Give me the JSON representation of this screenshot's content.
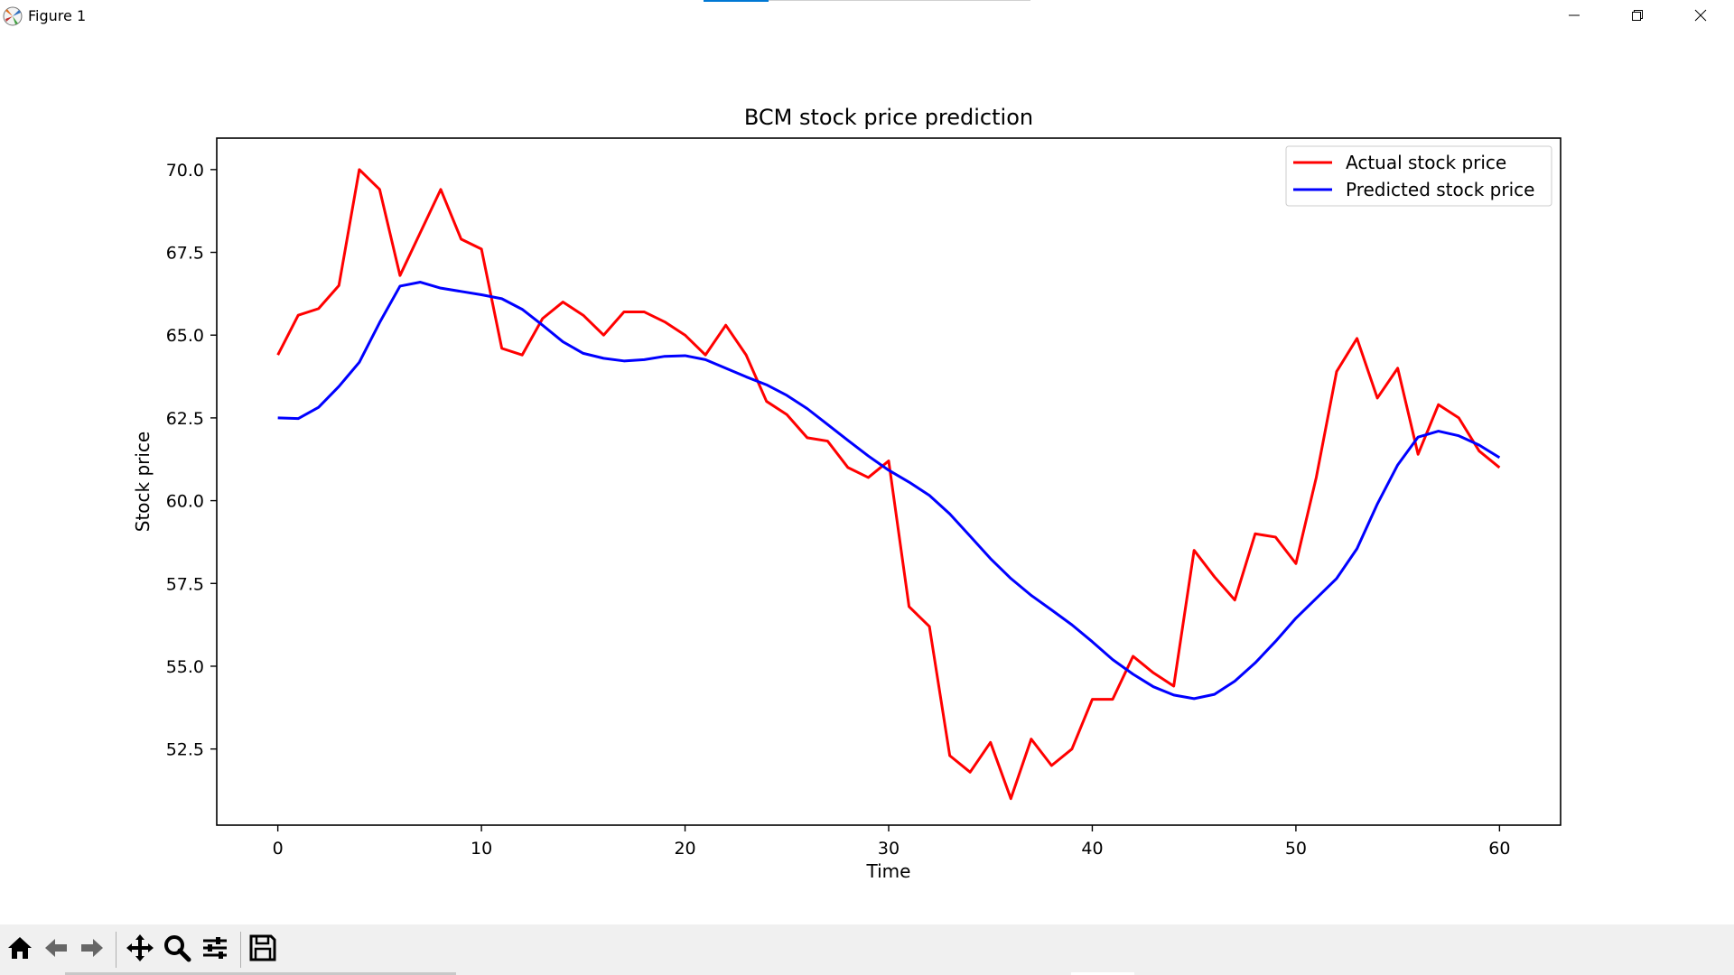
{
  "window": {
    "title": "Figure 1",
    "icon": "matplotlib-icon",
    "controls": [
      "minimize-icon",
      "restore-icon",
      "close-icon"
    ]
  },
  "toolbar": {
    "buttons": [
      {
        "name": "home-icon"
      },
      {
        "name": "back-arrow-icon"
      },
      {
        "name": "forward-arrow-icon"
      },
      {
        "name": "pan-icon"
      },
      {
        "name": "zoom-icon"
      },
      {
        "name": "configure-subplots-icon"
      },
      {
        "name": "save-icon"
      }
    ]
  },
  "chart_data": {
    "type": "line",
    "title": "BCM stock price prediction",
    "xlabel": "Time",
    "ylabel": "Stock price",
    "xlim": [
      -3,
      63
    ],
    "ylim": [
      50.2,
      70.95
    ],
    "xticks": [
      0,
      10,
      20,
      30,
      40,
      50,
      60
    ],
    "yticks": [
      52.5,
      55.0,
      57.5,
      60.0,
      62.5,
      65.0,
      67.5,
      70.0
    ],
    "xtick_labels": [
      "0",
      "10",
      "20",
      "30",
      "40",
      "50",
      "60"
    ],
    "ytick_labels": [
      "52.5",
      "55.0",
      "57.5",
      "60.0",
      "62.5",
      "65.0",
      "67.5",
      "70.0"
    ],
    "grid": false,
    "legend_position": "top-right",
    "x": [
      0,
      1,
      2,
      3,
      4,
      5,
      6,
      7,
      8,
      9,
      10,
      11,
      12,
      13,
      14,
      15,
      16,
      17,
      18,
      19,
      20,
      21,
      22,
      23,
      24,
      25,
      26,
      27,
      28,
      29,
      30,
      31,
      32,
      33,
      34,
      35,
      36,
      37,
      38,
      39,
      40,
      41,
      42,
      43,
      44,
      45,
      46,
      47,
      48,
      49,
      50,
      51,
      52,
      53,
      54,
      55,
      56,
      57,
      58,
      59,
      60
    ],
    "series": [
      {
        "name": "Actual stock price",
        "color": "#ff0000",
        "values": [
          64.4,
          65.6,
          65.8,
          66.5,
          70.0,
          69.4,
          66.8,
          68.1,
          69.4,
          67.9,
          67.6,
          64.6,
          64.4,
          65.5,
          66.0,
          65.6,
          65.0,
          65.7,
          65.7,
          65.4,
          65.0,
          64.4,
          65.3,
          64.4,
          63.0,
          62.6,
          61.9,
          61.8,
          61.0,
          60.7,
          61.2,
          56.8,
          56.2,
          52.3,
          51.8,
          52.7,
          51.0,
          52.8,
          52.0,
          52.5,
          54.0,
          54.0,
          55.3,
          54.8,
          54.4,
          58.5,
          57.7,
          57.0,
          59.0,
          58.9,
          58.1,
          60.7,
          63.9,
          64.9,
          63.1,
          64.0,
          61.4,
          62.9,
          62.5,
          61.5,
          61.0
        ]
      },
      {
        "name": "Predicted stock price",
        "color": "#0000ff",
        "values": [
          62.5,
          62.48,
          62.82,
          63.45,
          64.18,
          65.38,
          66.48,
          66.6,
          66.42,
          66.32,
          66.22,
          66.1,
          65.78,
          65.3,
          64.8,
          64.45,
          64.3,
          64.22,
          64.26,
          64.36,
          64.38,
          64.26,
          64.0,
          63.74,
          63.5,
          63.18,
          62.78,
          62.3,
          61.82,
          61.35,
          60.92,
          60.56,
          60.16,
          59.6,
          58.93,
          58.25,
          57.65,
          57.14,
          56.7,
          56.25,
          55.74,
          55.2,
          54.76,
          54.38,
          54.13,
          54.02,
          54.15,
          54.55,
          55.1,
          55.75,
          56.45,
          57.05,
          57.65,
          58.55,
          59.9,
          61.08,
          61.92,
          62.1,
          61.96,
          61.68,
          61.3
        ]
      }
    ]
  }
}
